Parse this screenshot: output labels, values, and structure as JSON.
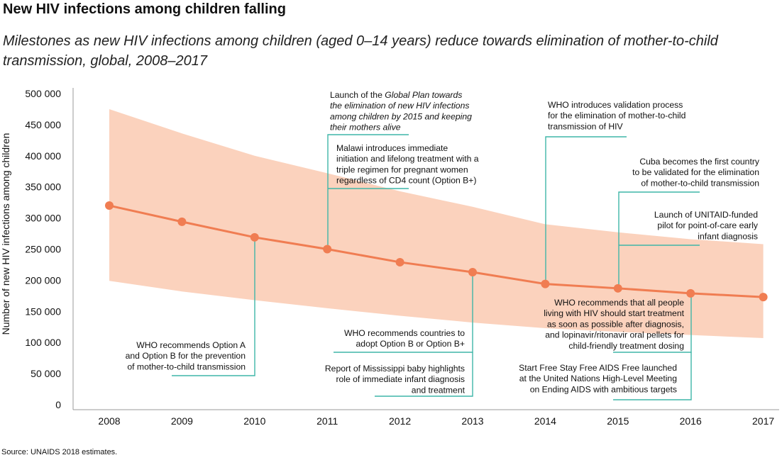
{
  "title": "New HIV infections among children falling",
  "subtitle": "Milestones as new HIV infections among children (aged 0–14 years) reduce towards elimination of mother-to-child transmission, global, 2008–2017",
  "source": "Source: UNAIDS 2018 estimates.",
  "colors": {
    "line": "#f07d52",
    "band": "#fbd2bd",
    "annotation": "#3fb6a8",
    "axis": "#999999"
  },
  "chart_data": {
    "type": "line",
    "title": "New HIV infections among children falling",
    "ylabel": "Number of new HIV infections among children",
    "xlabel": "",
    "ylim": [
      0,
      500000
    ],
    "yticks": [
      0,
      50000,
      100000,
      150000,
      200000,
      250000,
      300000,
      350000,
      400000,
      450000,
      500000
    ],
    "ytick_labels": [
      "0",
      "50 000",
      "100 000",
      "150 000",
      "200 000",
      "250 000",
      "300 000",
      "350 000",
      "400 000",
      "450 000",
      "500 000"
    ],
    "x": [
      "2008",
      "2009",
      "2010",
      "2011",
      "2012",
      "2013",
      "2014",
      "2015",
      "2016",
      "2017"
    ],
    "series": [
      {
        "values": [
          320000,
          294000,
          269000,
          250000,
          229000,
          213000,
          194000,
          187000,
          179000,
          173000
        ],
        "lower": [
          199000,
          182000,
          168000,
          155000,
          143000,
          132000,
          123000,
          117000,
          112000,
          107000
        ],
        "upper": [
          475000,
          436000,
          400000,
          372000,
          343000,
          318000,
          290000,
          277000,
          266000,
          258000
        ]
      }
    ],
    "grid": false,
    "annotations": [
      {
        "id": "option-a-b",
        "year": "2010",
        "lines": [
          [
            {
              "t": "WHO recommends Option A"
            }
          ],
          [
            {
              "t": "and Option B for the prevention"
            }
          ],
          [
            {
              "t": "of mother-to-child transmission"
            }
          ]
        ]
      },
      {
        "id": "global-plan",
        "year": "2011",
        "lines": [
          [
            {
              "t": "Launch of the "
            },
            {
              "t": "Global Plan towards",
              "i": true
            }
          ],
          [
            {
              "t": "the elimination of new HIV infections",
              "i": true
            }
          ],
          [
            {
              "t": "among children by 2015 and keeping",
              "i": true
            }
          ],
          [
            {
              "t": "their mothers alive",
              "i": true
            }
          ]
        ]
      },
      {
        "id": "malawi",
        "year": "2011",
        "lines": [
          [
            {
              "t": "Malawi introduces immediate"
            }
          ],
          [
            {
              "t": "initiation and lifelong treatment with a"
            }
          ],
          [
            {
              "t": "triple regimen for  pregnant women"
            }
          ],
          [
            {
              "t": "regardless of CD4 count (Option B+)"
            }
          ]
        ]
      },
      {
        "id": "option-b-plus",
        "year": "2013",
        "lines": [
          [
            {
              "t": "WHO recommends countries to"
            }
          ],
          [
            {
              "t": "adopt Option B or Option B+"
            }
          ]
        ]
      },
      {
        "id": "mississippi",
        "year": "2013",
        "lines": [
          [
            {
              "t": "Report of Mississippi baby highlights"
            }
          ],
          [
            {
              "t": "role of immediate infant diagnosis"
            }
          ],
          [
            {
              "t": "and treatment"
            }
          ]
        ]
      },
      {
        "id": "validation",
        "year": "2014",
        "lines": [
          [
            {
              "t": "WHO introduces validation process"
            }
          ],
          [
            {
              "t": "for the elimination of mother-to-child"
            }
          ],
          [
            {
              "t": "transmission of HIV"
            }
          ]
        ]
      },
      {
        "id": "cuba",
        "year": "2015",
        "lines": [
          [
            {
              "t": "Cuba becomes the first country"
            }
          ],
          [
            {
              "t": "to be validated for the elimination"
            }
          ],
          [
            {
              "t": "of mother-to-child transmission"
            }
          ]
        ]
      },
      {
        "id": "unitaid",
        "year": "2015",
        "lines": [
          [
            {
              "t": "Launch of UNITAID-funded"
            }
          ],
          [
            {
              "t": "pilot for point-of-care early"
            }
          ],
          [
            {
              "t": "infant diagnosis"
            }
          ]
        ]
      },
      {
        "id": "treat-all",
        "year": "2016",
        "lines": [
          [
            {
              "t": "WHO recommends that all people"
            }
          ],
          [
            {
              "t": "living with HIV should start treatment"
            }
          ],
          [
            {
              "t": "as soon as possible after diagnosis,"
            }
          ],
          [
            {
              "t": "and lopinavir/ritonavir oral pellets for"
            }
          ],
          [
            {
              "t": "child-friendly treatment dosing"
            }
          ]
        ]
      },
      {
        "id": "start-free",
        "year": "2016",
        "lines": [
          [
            {
              "t": "Start Free Stay Free AIDS Free launched"
            }
          ],
          [
            {
              "t": "at the United Nations High-Level Meeting"
            }
          ],
          [
            {
              "t": "on Ending AIDS with ambitious targets"
            }
          ]
        ]
      }
    ]
  }
}
